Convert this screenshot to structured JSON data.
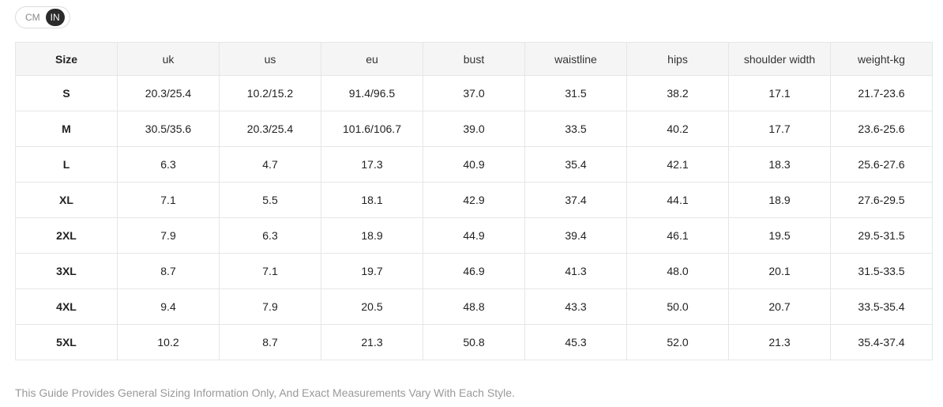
{
  "unit_toggle": {
    "options": [
      "CM",
      "IN"
    ],
    "selected": "IN"
  },
  "table": {
    "headers": [
      "Size",
      "uk",
      "us",
      "eu",
      "bust",
      "waistline",
      "hips",
      "shoulder width",
      "weight-kg"
    ],
    "rows": [
      [
        "S",
        "20.3/25.4",
        "10.2/15.2",
        "91.4/96.5",
        "37.0",
        "31.5",
        "38.2",
        "17.1",
        "21.7-23.6"
      ],
      [
        "M",
        "30.5/35.6",
        "20.3/25.4",
        "101.6/106.7",
        "39.0",
        "33.5",
        "40.2",
        "17.7",
        "23.6-25.6"
      ],
      [
        "L",
        "6.3",
        "4.7",
        "17.3",
        "40.9",
        "35.4",
        "42.1",
        "18.3",
        "25.6-27.6"
      ],
      [
        "XL",
        "7.1",
        "5.5",
        "18.1",
        "42.9",
        "37.4",
        "44.1",
        "18.9",
        "27.6-29.5"
      ],
      [
        "2XL",
        "7.9",
        "6.3",
        "18.9",
        "44.9",
        "39.4",
        "46.1",
        "19.5",
        "29.5-31.5"
      ],
      [
        "3XL",
        "8.7",
        "7.1",
        "19.7",
        "46.9",
        "41.3",
        "48.0",
        "20.1",
        "31.5-33.5"
      ],
      [
        "4XL",
        "9.4",
        "7.9",
        "20.5",
        "48.8",
        "43.3",
        "50.0",
        "20.7",
        "33.5-35.4"
      ],
      [
        "5XL",
        "10.2",
        "8.7",
        "21.3",
        "50.8",
        "45.3",
        "52.0",
        "21.3",
        "35.4-37.4"
      ]
    ]
  },
  "footnote": "This Guide Provides General Sizing Information Only, And Exact Measurements Vary With Each Style."
}
